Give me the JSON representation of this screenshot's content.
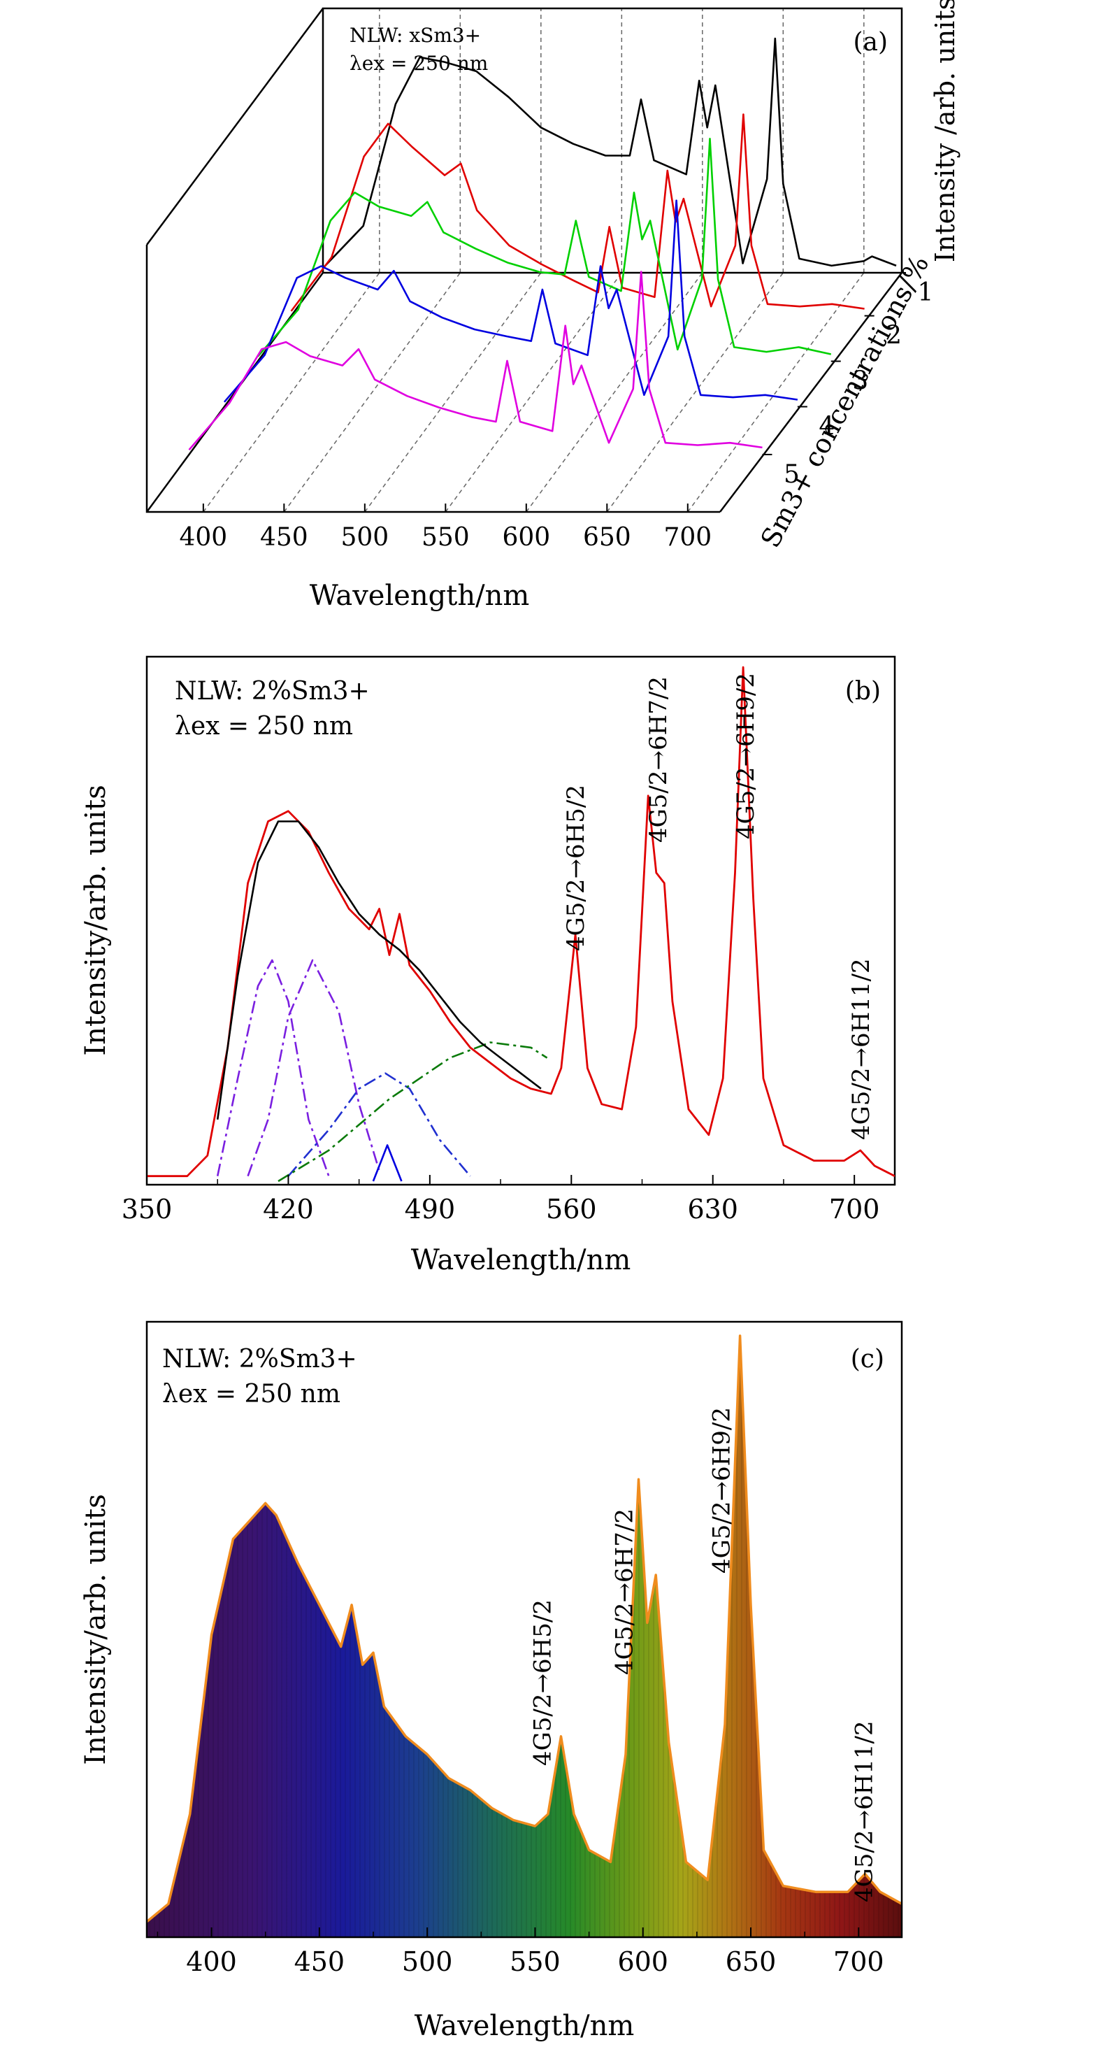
{
  "chart_data": [
    {
      "panel": "(a)",
      "type": "line",
      "title": "",
      "annotation": [
        "NLW: xSm3+",
        "λex = 250 nm"
      ],
      "xlabel": "Wavelength/nm",
      "ylabel": "Intensity /arb. units",
      "zlabel": "Sm3+ concentrations/%",
      "xlim": [
        365,
        720
      ],
      "xticks": [
        400,
        450,
        500,
        550,
        600,
        650,
        700
      ],
      "zticks": [
        1,
        2,
        3,
        4,
        5
      ],
      "grid": "dashed vertical lines at 50 nm steps",
      "series": [
        {
          "name": "1",
          "color": "#000000",
          "x": [
            365,
            390,
            410,
            425,
            440,
            460,
            480,
            500,
            520,
            540,
            555,
            562,
            570,
            590,
            598,
            603,
            608,
            625,
            640,
            645,
            650,
            660,
            680,
            700,
            705,
            720
          ],
          "y": [
            0.02,
            0.2,
            0.72,
            0.92,
            0.9,
            0.86,
            0.75,
            0.62,
            0.55,
            0.5,
            0.5,
            0.74,
            0.48,
            0.42,
            0.82,
            0.62,
            0.8,
            0.04,
            0.4,
            1.0,
            0.38,
            0.06,
            0.03,
            0.05,
            0.07,
            0.03
          ]
        },
        {
          "name": "2",
          "color": "#e00000",
          "x": [
            365,
            390,
            410,
            425,
            440,
            460,
            470,
            480,
            500,
            520,
            540,
            555,
            562,
            570,
            590,
            598,
            603,
            608,
            625,
            640,
            645,
            650,
            660,
            680,
            700,
            720
          ],
          "y": [
            0.02,
            0.25,
            0.68,
            0.82,
            0.72,
            0.6,
            0.65,
            0.45,
            0.3,
            0.22,
            0.15,
            0.1,
            0.38,
            0.12,
            0.08,
            0.62,
            0.4,
            0.5,
            0.04,
            0.3,
            0.86,
            0.3,
            0.05,
            0.04,
            0.05,
            0.03
          ]
        },
        {
          "name": "3",
          "color": "#00d000",
          "x": [
            365,
            390,
            410,
            425,
            440,
            460,
            470,
            480,
            500,
            520,
            540,
            555,
            562,
            570,
            590,
            598,
            603,
            608,
            625,
            640,
            645,
            650,
            660,
            680,
            700,
            720
          ],
          "y": [
            0.02,
            0.22,
            0.6,
            0.72,
            0.66,
            0.62,
            0.68,
            0.55,
            0.48,
            0.42,
            0.38,
            0.37,
            0.6,
            0.36,
            0.3,
            0.72,
            0.52,
            0.6,
            0.05,
            0.35,
            0.95,
            0.35,
            0.06,
            0.04,
            0.06,
            0.03
          ]
        },
        {
          "name": "4",
          "color": "#0000e0",
          "x": [
            365,
            390,
            410,
            425,
            440,
            460,
            470,
            480,
            500,
            520,
            540,
            555,
            562,
            570,
            590,
            598,
            603,
            608,
            625,
            640,
            645,
            650,
            660,
            680,
            700,
            720
          ],
          "y": [
            0.02,
            0.22,
            0.55,
            0.6,
            0.55,
            0.5,
            0.58,
            0.45,
            0.38,
            0.33,
            0.3,
            0.28,
            0.5,
            0.27,
            0.22,
            0.6,
            0.42,
            0.5,
            0.05,
            0.3,
            0.88,
            0.3,
            0.05,
            0.04,
            0.05,
            0.03
          ]
        },
        {
          "name": "5",
          "color": "#e000e0",
          "x": [
            365,
            390,
            410,
            425,
            440,
            460,
            470,
            480,
            500,
            520,
            540,
            555,
            562,
            570,
            590,
            598,
            603,
            608,
            625,
            640,
            645,
            650,
            660,
            680,
            700,
            720
          ],
          "y": [
            0.02,
            0.22,
            0.45,
            0.48,
            0.42,
            0.38,
            0.45,
            0.32,
            0.25,
            0.2,
            0.16,
            0.14,
            0.4,
            0.14,
            0.1,
            0.55,
            0.3,
            0.38,
            0.05,
            0.28,
            0.78,
            0.28,
            0.05,
            0.04,
            0.05,
            0.03
          ]
        }
      ]
    },
    {
      "panel": "(b)",
      "type": "line",
      "title": "",
      "annotation": [
        "NLW: 2%Sm3+",
        "λex = 250 nm"
      ],
      "xlabel": "Wavelength/nm",
      "ylabel": "Intensity/arb. units",
      "xlim": [
        350,
        720
      ],
      "ylim": [
        0,
        1
      ],
      "xticks": [
        350,
        420,
        490,
        560,
        630,
        700
      ],
      "peak_labels": [
        {
          "text": "4G5/2→6H5/2",
          "x": 562
        },
        {
          "text": "4G5/2→6H7/2",
          "x": 600
        },
        {
          "text": "4G5/2→6H9/2",
          "x": 646
        },
        {
          "text": "4G5/2→6H11/2",
          "x": 703
        }
      ],
      "series": [
        {
          "name": "measured",
          "color": "#e00000",
          "x": [
            350,
            370,
            380,
            390,
            400,
            410,
            420,
            430,
            440,
            450,
            460,
            465,
            470,
            475,
            480,
            490,
            500,
            510,
            520,
            530,
            540,
            550,
            555,
            562,
            568,
            575,
            585,
            592,
            598,
            602,
            606,
            610,
            618,
            628,
            635,
            641,
            645,
            650,
            655,
            665,
            680,
            695,
            703,
            710,
            720
          ],
          "y": [
            0.01,
            0.01,
            0.05,
            0.26,
            0.58,
            0.7,
            0.72,
            0.68,
            0.6,
            0.53,
            0.49,
            0.53,
            0.44,
            0.52,
            0.42,
            0.37,
            0.31,
            0.26,
            0.23,
            0.2,
            0.18,
            0.17,
            0.22,
            0.48,
            0.22,
            0.15,
            0.14,
            0.3,
            0.75,
            0.6,
            0.58,
            0.35,
            0.14,
            0.09,
            0.2,
            0.6,
            1.0,
            0.55,
            0.2,
            0.07,
            0.04,
            0.04,
            0.06,
            0.03,
            0.01
          ]
        },
        {
          "name": "fit",
          "color": "#000000",
          "x": [
            385,
            395,
            405,
            415,
            425,
            435,
            445,
            455,
            465,
            475,
            485,
            495,
            505,
            515,
            525,
            535,
            545
          ],
          "y": [
            0.12,
            0.4,
            0.62,
            0.7,
            0.7,
            0.65,
            0.58,
            0.52,
            0.48,
            0.45,
            0.41,
            0.36,
            0.31,
            0.27,
            0.24,
            0.21,
            0.18
          ]
        },
        {
          "name": "gaussian 1",
          "color": "#7a1fe0",
          "x": [
            385,
            395,
            405,
            412,
            420,
            430,
            440
          ],
          "y": [
            0.01,
            0.2,
            0.38,
            0.43,
            0.35,
            0.12,
            0.01
          ]
        },
        {
          "name": "gaussian 2",
          "color": "#7a1fe0",
          "x": [
            400,
            410,
            420,
            432,
            445,
            455,
            465
          ],
          "y": [
            0.01,
            0.12,
            0.32,
            0.43,
            0.33,
            0.15,
            0.02
          ]
        },
        {
          "name": "gaussian 3",
          "color": "#2030d0",
          "x": [
            420,
            440,
            455,
            468,
            480,
            495,
            510
          ],
          "y": [
            0.01,
            0.1,
            0.18,
            0.21,
            0.18,
            0.08,
            0.01
          ]
        },
        {
          "name": "gaussian 4",
          "color": "#0a7a0a",
          "x": [
            415,
            440,
            470,
            500,
            520,
            540,
            548
          ],
          "y": [
            0.0,
            0.06,
            0.16,
            0.24,
            0.27,
            0.26,
            0.24
          ]
        },
        {
          "name": "gaussian 5",
          "color": "#0000e0",
          "x": [
            462,
            466,
            469,
            472,
            476
          ],
          "y": [
            0.0,
            0.04,
            0.07,
            0.04,
            0.0
          ]
        }
      ]
    },
    {
      "panel": "(c)",
      "type": "area",
      "title": "",
      "annotation": [
        "NLW: 2%Sm3+",
        "λex = 250 nm"
      ],
      "xlabel": "Wavelength/nm",
      "ylabel": "Intensity/arb. units",
      "xlim": [
        370,
        720
      ],
      "ylim": [
        0,
        1
      ],
      "xticks": [
        400,
        450,
        500,
        550,
        600,
        650,
        700
      ],
      "fill": "visible-spectrum color gradient",
      "line_color": "#f08c1e",
      "peak_labels": [
        {
          "text": "4G5/2→6H5/2",
          "x": 562
        },
        {
          "text": "4G5/2→6H7/2",
          "x": 600
        },
        {
          "text": "4G5/2→6H9/2",
          "x": 645
        },
        {
          "text": "4G5/2→6H11/2",
          "x": 703
        }
      ],
      "x": [
        370,
        380,
        390,
        400,
        410,
        420,
        425,
        430,
        440,
        450,
        460,
        465,
        470,
        475,
        480,
        490,
        500,
        510,
        520,
        530,
        540,
        550,
        556,
        562,
        568,
        575,
        585,
        592,
        598,
        602,
        606,
        612,
        620,
        630,
        638,
        645,
        650,
        656,
        665,
        680,
        695,
        703,
        710,
        720
      ],
      "y": [
        0.02,
        0.05,
        0.2,
        0.5,
        0.66,
        0.7,
        0.72,
        0.7,
        0.62,
        0.55,
        0.48,
        0.55,
        0.45,
        0.47,
        0.38,
        0.33,
        0.3,
        0.26,
        0.24,
        0.21,
        0.19,
        0.18,
        0.2,
        0.33,
        0.2,
        0.14,
        0.12,
        0.3,
        0.76,
        0.52,
        0.6,
        0.32,
        0.12,
        0.09,
        0.35,
        1.0,
        0.55,
        0.14,
        0.08,
        0.07,
        0.07,
        0.1,
        0.07,
        0.05
      ]
    }
  ]
}
